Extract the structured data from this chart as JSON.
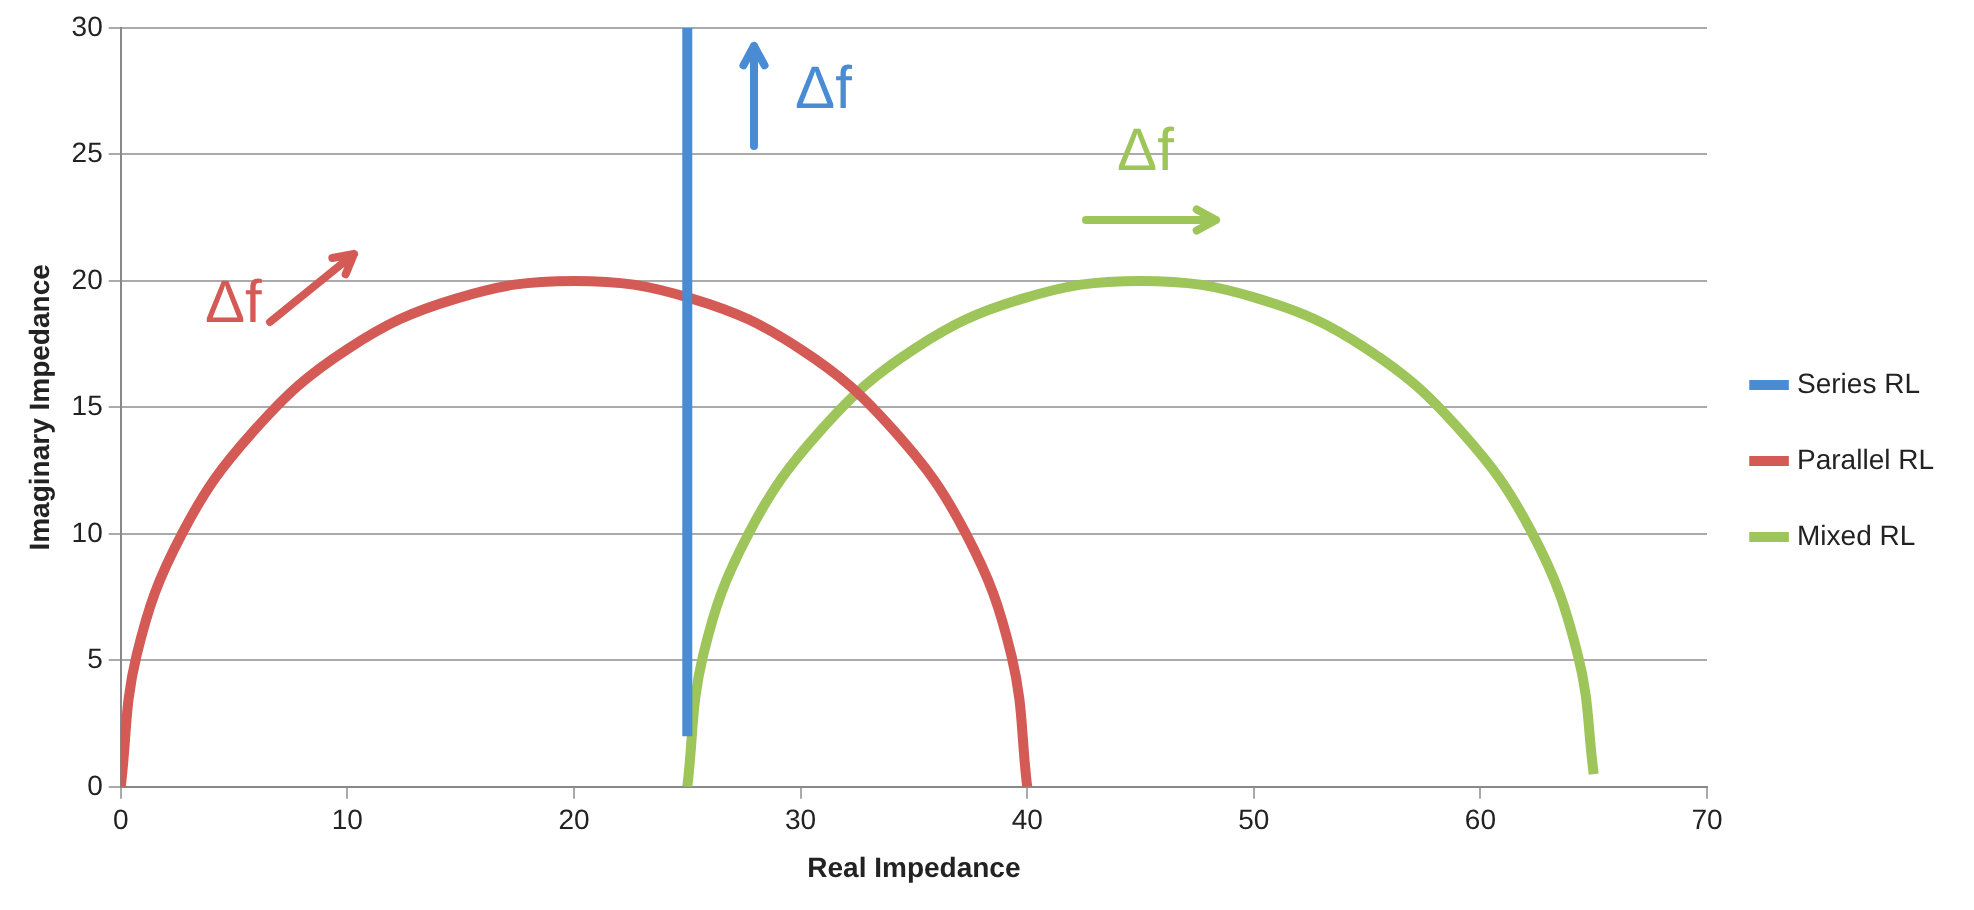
{
  "chart_data": {
    "type": "line",
    "xlabel": "Real Impedance",
    "ylabel": "Imaginary Impedance",
    "xlim": [
      0,
      70
    ],
    "xticks": [
      0,
      10,
      20,
      30,
      40,
      50,
      60,
      70
    ],
    "ylim": [
      0,
      30
    ],
    "yticks": [
      0,
      5,
      10,
      15,
      20,
      25,
      30
    ],
    "grid": "y",
    "legend": "right",
    "marker": "none",
    "series": [
      {
        "name": "Series RL",
        "color": "#4a8cd4",
        "x": [
          25,
          25
        ],
        "values": [
          2,
          30
        ]
      },
      {
        "name": "Parallel RL",
        "color": "#d35a55",
        "x": [
          0,
          0.7,
          2.7,
          5.9,
          10,
          14.8,
          20,
          25.2,
          30,
          34.1,
          37.3,
          39.3,
          40
        ],
        "values": [
          0,
          5.2,
          10,
          14.1,
          17.3,
          19.3,
          20,
          19.3,
          17.3,
          14.1,
          10,
          5.2,
          0
        ]
      },
      {
        "name": "Mixed RL",
        "color": "#9dc559",
        "x": [
          25,
          25.7,
          27.7,
          30.9,
          35,
          39.8,
          45,
          50.2,
          55,
          59.1,
          62.3,
          64.3,
          65
        ],
        "values": [
          0,
          5.2,
          10,
          14.1,
          17.3,
          19.3,
          20,
          19.3,
          17.3,
          14.1,
          10,
          5.2,
          0.5
        ]
      }
    ],
    "annotations": [
      "Δf",
      "Δf",
      "Δf"
    ]
  }
}
